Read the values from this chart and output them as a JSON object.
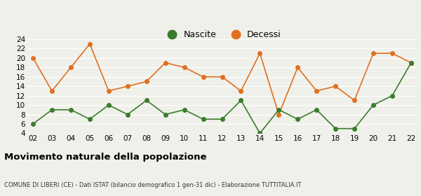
{
  "years": [
    "02",
    "03",
    "04",
    "05",
    "06",
    "07",
    "08",
    "09",
    "10",
    "11",
    "12",
    "13",
    "14",
    "15",
    "16",
    "17",
    "18",
    "19",
    "20",
    "21",
    "22"
  ],
  "nascite": [
    6,
    9,
    9,
    7,
    10,
    8,
    11,
    8,
    9,
    7,
    7,
    11,
    4,
    9,
    7,
    9,
    5,
    5,
    10,
    12,
    19
  ],
  "decessi": [
    20,
    13,
    18,
    23,
    13,
    14,
    15,
    19,
    18,
    16,
    16,
    13,
    21,
    8,
    18,
    13,
    14,
    11,
    21,
    21,
    19
  ],
  "nascite_color": "#3a7d2c",
  "decessi_color": "#e07020",
  "title": "Movimento naturale della popolazione",
  "subtitle": "COMUNE DI LIBERI (CE) - Dati ISTAT (bilancio demografico 1 gen-31 dic) - Elaborazione TUTTITALIA.IT",
  "ylim": [
    4,
    24
  ],
  "yticks": [
    4,
    6,
    8,
    10,
    12,
    14,
    16,
    18,
    20,
    22,
    24
  ],
  "bg_color": "#f0f0eb",
  "grid_color": "#ffffff",
  "legend_label_nascite": "Nascite",
  "legend_label_decessi": "Decessi"
}
